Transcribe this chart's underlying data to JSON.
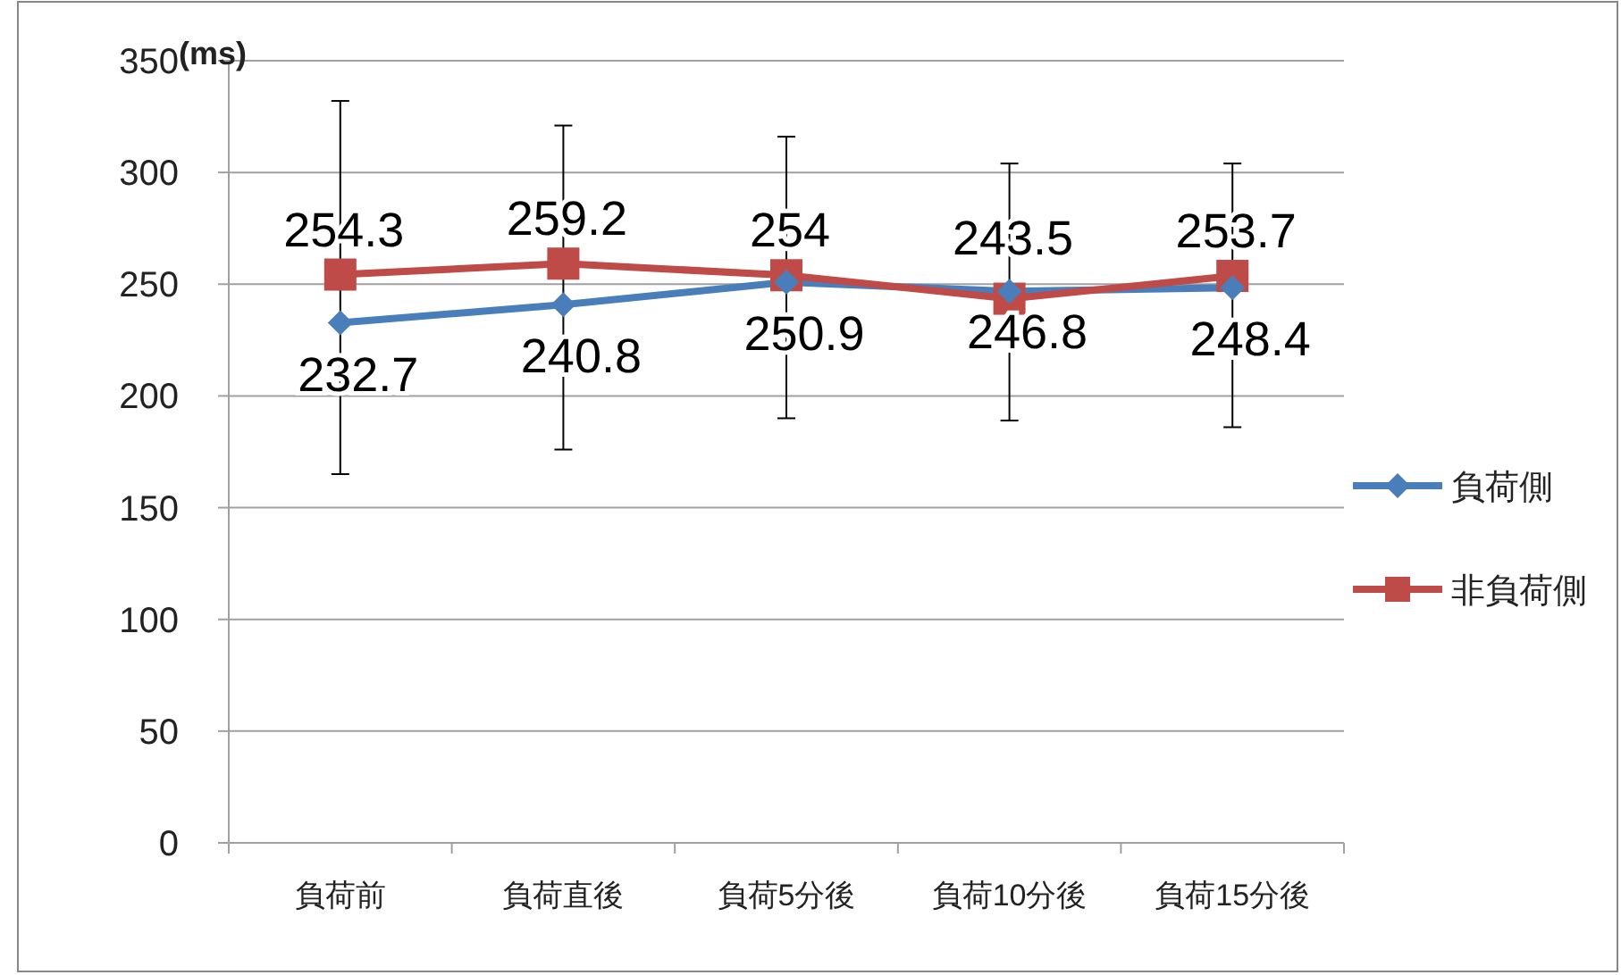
{
  "chart_data": {
    "type": "line",
    "ylabel": "(ms)",
    "categories": [
      "負荷前",
      "負荷直後",
      "負荷5分後",
      "負荷10分後",
      "負荷15分後"
    ],
    "series": [
      {
        "name": "負荷側",
        "color": "#4a7ebb",
        "marker": "diamond",
        "values": [
          232.7,
          240.8,
          250.9,
          246.8,
          248.4
        ],
        "errors": [
          [
            165,
            332
          ],
          [
            176,
            321
          ],
          [
            190,
            316
          ],
          [
            189,
            304
          ],
          [
            186,
            304
          ]
        ]
      },
      {
        "name": "非負荷側",
        "color": "#be4b48",
        "marker": "square",
        "values": [
          254.3,
          259.2,
          254,
          243.5,
          253.7
        ]
      }
    ],
    "ylim": [
      0,
      350
    ],
    "yticks": [
      0,
      50,
      100,
      150,
      200,
      250,
      300,
      350
    ],
    "grid": "y",
    "legend": "right",
    "data_labels": true
  }
}
